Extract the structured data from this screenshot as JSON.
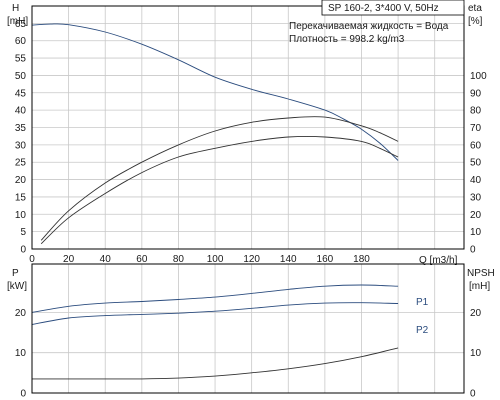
{
  "chart_data": [
    {
      "type": "line",
      "title": "SP 160-2, 3*400 V, 50Hz",
      "annotations": [
        "Перекачиваемая жидкость = Вода",
        "Плотность = 998.2 kg/m3"
      ],
      "xlabel": "Q [m3/h]",
      "x_ticks": [
        0,
        20,
        40,
        60,
        80,
        100,
        120,
        140,
        160,
        180
      ],
      "xlim": [
        0,
        236
      ],
      "ylabel_left": [
        "H",
        "[mH]"
      ],
      "ylim_left": [
        0,
        70
      ],
      "y_ticks_left": [
        0,
        5,
        10,
        15,
        20,
        25,
        30,
        35,
        40,
        45,
        50,
        55,
        60,
        65
      ],
      "ylabel_right": [
        "eta",
        "[%]"
      ],
      "ylim_right": [
        0,
        140
      ],
      "y_ticks_right": [
        0,
        10,
        20,
        30,
        40,
        50,
        60,
        70,
        80,
        90,
        100
      ],
      "grid": true,
      "series": [
        {
          "axis": "left",
          "color": "#2b4c7e",
          "x": [
            0,
            10,
            20,
            40,
            60,
            80,
            100,
            120,
            140,
            160,
            170,
            180,
            190,
            200
          ],
          "y": [
            64.5,
            64.8,
            64.6,
            62.5,
            59,
            54.5,
            49.5,
            46,
            43.2,
            40,
            37.5,
            34.5,
            30.5,
            25.5
          ]
        },
        {
          "axis": "right",
          "color": "#333333",
          "x": [
            5,
            20,
            40,
            60,
            80,
            100,
            120,
            140,
            160,
            180,
            190,
            200
          ],
          "y": [
            5,
            22,
            38,
            50,
            60,
            68,
            73,
            75.5,
            76,
            71,
            67,
            62
          ]
        },
        {
          "axis": "right",
          "color": "#333333",
          "x": [
            5,
            20,
            40,
            60,
            80,
            100,
            120,
            140,
            160,
            180,
            190,
            200
          ],
          "y": [
            3,
            18,
            32,
            44,
            53,
            58,
            62,
            64.5,
            64.5,
            62,
            58,
            53
          ]
        }
      ]
    },
    {
      "type": "line",
      "xlim": [
        0,
        236
      ],
      "ylabel_left": [
        "P",
        "[kW]"
      ],
      "ylim_left": [
        0,
        32
      ],
      "y_ticks_left": [
        0,
        10,
        20
      ],
      "ylabel_right": [
        "NPSH",
        "[mH]"
      ],
      "ylim_right": [
        0,
        32
      ],
      "y_ticks_right": [
        0,
        10,
        20
      ],
      "grid": true,
      "series": [
        {
          "name": "P1",
          "axis": "left",
          "color": "#2b4c7e",
          "x": [
            0,
            20,
            40,
            60,
            80,
            100,
            120,
            140,
            160,
            180,
            200
          ],
          "y": [
            20,
            21.5,
            22.3,
            22.7,
            23.2,
            23.8,
            24.7,
            25.7,
            26.5,
            26.8,
            26.5
          ]
        },
        {
          "name": "P2",
          "axis": "left",
          "color": "#2b4c7e",
          "x": [
            0,
            20,
            40,
            60,
            80,
            100,
            120,
            140,
            160,
            180,
            200
          ],
          "y": [
            17,
            18.6,
            19.2,
            19.5,
            19.8,
            20.3,
            21,
            21.8,
            22.3,
            22.4,
            22.2
          ]
        },
        {
          "axis": "right",
          "color": "#333333",
          "x": [
            0,
            20,
            40,
            60,
            80,
            100,
            120,
            140,
            160,
            180,
            200
          ],
          "y": [
            3.5,
            3.5,
            3.5,
            3.5,
            3.7,
            4.2,
            5.0,
            6.0,
            7.3,
            9.0,
            11.2
          ]
        }
      ]
    }
  ]
}
